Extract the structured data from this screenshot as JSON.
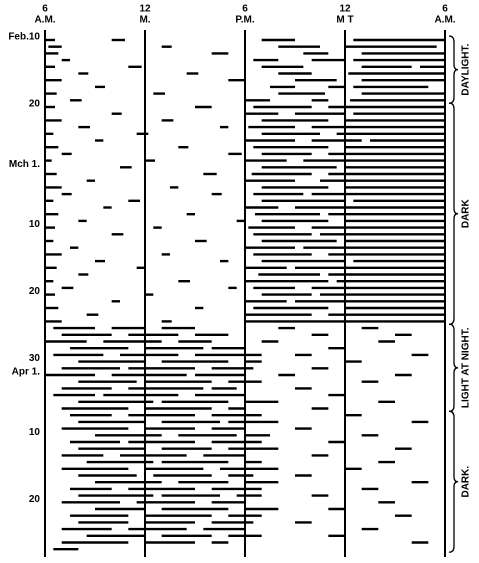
{
  "chart_data": {
    "type": "actogram",
    "xlim": [
      0,
      24
    ],
    "xticks": [
      {
        "value": 0,
        "label": "6"
      },
      {
        "value": 6,
        "label": "12"
      },
      {
        "value": 12,
        "label": "6"
      },
      {
        "value": 18,
        "label": "12"
      },
      {
        "value": 24,
        "label": "6"
      }
    ],
    "xtick_sublabels": [
      "A.M.",
      "M.",
      "P.M.",
      "M T",
      "A.M."
    ],
    "color": "#000000",
    "day_labels": [
      {
        "row": 0,
        "label": "Feb.10"
      },
      {
        "row": 10,
        "label": "20"
      },
      {
        "row": 19,
        "label": "Mch 1."
      },
      {
        "row": 28,
        "label": "10"
      },
      {
        "row": 38,
        "label": "20"
      },
      {
        "row": 48,
        "label": "30"
      },
      {
        "row": 50,
        "label": "Apr 1."
      },
      {
        "row": 59,
        "label": "10"
      },
      {
        "row": 69,
        "label": "20"
      }
    ],
    "phases": [
      {
        "label": "DAYLIGHT.",
        "rows": [
          0,
          9
        ]
      },
      {
        "label": "DARK",
        "rows": [
          10,
          42
        ]
      },
      {
        "label": "LIGHT AT NIGHT.",
        "rows": [
          43,
          55
        ]
      },
      {
        "label": "DARK.",
        "rows": [
          56,
          76
        ]
      }
    ],
    "rows": [
      [
        [
          0,
          0.6
        ],
        [
          4,
          4.8
        ],
        [
          13,
          15
        ],
        [
          18.5,
          24
        ]
      ],
      [
        [
          0.2,
          1
        ],
        [
          7,
          7.6
        ],
        [
          14,
          16.5
        ],
        [
          18,
          23.5
        ]
      ],
      [
        [
          0,
          0.8
        ],
        [
          10,
          11
        ],
        [
          15.5,
          17
        ],
        [
          19,
          24
        ]
      ],
      [
        [
          1,
          1.5
        ],
        [
          12.5,
          14
        ],
        [
          16,
          18
        ],
        [
          18.5,
          24
        ]
      ],
      [
        [
          0,
          0.6
        ],
        [
          5,
          5.8
        ],
        [
          13,
          15.5
        ],
        [
          19,
          22
        ],
        [
          22.5,
          24
        ]
      ],
      [
        [
          2,
          2.6
        ],
        [
          8.5,
          9.2
        ],
        [
          14,
          16
        ],
        [
          18.2,
          24
        ]
      ],
      [
        [
          0,
          1
        ],
        [
          11,
          12
        ],
        [
          15,
          17.5
        ],
        [
          19,
          24
        ]
      ],
      [
        [
          3,
          3.6
        ],
        [
          13.5,
          15
        ],
        [
          17,
          18
        ],
        [
          18.5,
          23
        ]
      ],
      [
        [
          0,
          0.7
        ],
        [
          6.5,
          7.2
        ],
        [
          14,
          16.8
        ],
        [
          19,
          24
        ]
      ],
      [
        [
          1.5,
          2.2
        ],
        [
          12,
          13.5
        ],
        [
          16,
          17
        ],
        [
          18.3,
          24
        ]
      ],
      [
        [
          0,
          0.6
        ],
        [
          9,
          10
        ],
        [
          12.5,
          16
        ],
        [
          17,
          24
        ]
      ],
      [
        [
          4,
          4.6
        ],
        [
          12,
          14
        ],
        [
          15,
          18
        ],
        [
          18.5,
          24
        ]
      ],
      [
        [
          0,
          1
        ],
        [
          7,
          7.7
        ],
        [
          13,
          17
        ],
        [
          18,
          24
        ]
      ],
      [
        [
          2,
          2.7
        ],
        [
          10.5,
          11
        ],
        [
          12.2,
          15
        ],
        [
          16,
          24
        ]
      ],
      [
        [
          0,
          0.5
        ],
        [
          5.5,
          6.2
        ],
        [
          13,
          16.5
        ],
        [
          17.5,
          24
        ]
      ],
      [
        [
          3,
          3.5
        ],
        [
          12,
          15
        ],
        [
          16,
          19
        ],
        [
          19.5,
          24
        ]
      ],
      [
        [
          0,
          0.8
        ],
        [
          8,
          8.6
        ],
        [
          12.5,
          17
        ],
        [
          18,
          24
        ]
      ],
      [
        [
          1,
          1.6
        ],
        [
          11,
          11.8
        ],
        [
          13,
          16
        ],
        [
          17,
          24
        ]
      ],
      [
        [
          0,
          0.4
        ],
        [
          6,
          6.6
        ],
        [
          12,
          14.5
        ],
        [
          15.5,
          24
        ]
      ],
      [
        [
          4.5,
          5.2
        ],
        [
          13,
          17.5
        ],
        [
          18,
          24
        ]
      ],
      [
        [
          0,
          0.7
        ],
        [
          9.5,
          10.3
        ],
        [
          12.4,
          16
        ],
        [
          17,
          24
        ]
      ],
      [
        [
          2.5,
          3
        ],
        [
          12,
          15
        ],
        [
          16.5,
          24
        ]
      ],
      [
        [
          0,
          1
        ],
        [
          7.5,
          8
        ],
        [
          13,
          17
        ],
        [
          18,
          24
        ]
      ],
      [
        [
          1,
          1.6
        ],
        [
          10,
          10.6
        ],
        [
          12.5,
          15.5
        ],
        [
          16,
          24
        ]
      ],
      [
        [
          0,
          0.5
        ],
        [
          5,
          5.7
        ],
        [
          13,
          18
        ],
        [
          18.5,
          24
        ]
      ],
      [
        [
          3.5,
          4
        ],
        [
          12,
          14
        ],
        [
          15,
          24
        ]
      ],
      [
        [
          0,
          0.8
        ],
        [
          8.5,
          9
        ],
        [
          12.6,
          16.5
        ],
        [
          17,
          24
        ]
      ],
      [
        [
          2,
          2.5
        ],
        [
          11.5,
          12
        ],
        [
          13,
          17
        ],
        [
          18,
          24
        ]
      ],
      [
        [
          0,
          0.6
        ],
        [
          6.5,
          7
        ],
        [
          12.2,
          15
        ],
        [
          16,
          24
        ]
      ],
      [
        [
          4,
          4.7
        ],
        [
          12.5,
          16
        ],
        [
          16.5,
          24
        ]
      ],
      [
        [
          0,
          0.5
        ],
        [
          9,
          9.7
        ],
        [
          13,
          17.5
        ],
        [
          18,
          24
        ]
      ],
      [
        [
          1.5,
          2
        ],
        [
          12,
          15
        ],
        [
          15.5,
          24
        ]
      ],
      [
        [
          0,
          1
        ],
        [
          7,
          7.5
        ],
        [
          12.5,
          16
        ],
        [
          17,
          24
        ]
      ],
      [
        [
          3,
          3.6
        ],
        [
          10.5,
          11
        ],
        [
          13,
          18
        ],
        [
          18.5,
          24
        ]
      ],
      [
        [
          0,
          0.7
        ],
        [
          5.5,
          6
        ],
        [
          12,
          14.5
        ],
        [
          15,
          24
        ]
      ],
      [
        [
          2,
          2.6
        ],
        [
          12.8,
          16.5
        ],
        [
          17,
          24
        ]
      ],
      [
        [
          0,
          0.5
        ],
        [
          8,
          8.7
        ],
        [
          12,
          17
        ],
        [
          17.5,
          24
        ]
      ],
      [
        [
          1,
          1.7
        ],
        [
          11,
          11.5
        ],
        [
          12.5,
          15
        ],
        [
          16,
          24
        ]
      ],
      [
        [
          0,
          0.6
        ],
        [
          6,
          6.5
        ],
        [
          13,
          16
        ],
        [
          16.5,
          24
        ]
      ],
      [
        [
          4,
          4.5
        ],
        [
          12,
          14.5
        ],
        [
          15,
          24
        ]
      ],
      [
        [
          0,
          0.8
        ],
        [
          9,
          9.5
        ],
        [
          12.5,
          17
        ],
        [
          18,
          24
        ]
      ],
      [
        [
          2.5,
          3.2
        ],
        [
          12,
          16
        ],
        [
          17,
          24
        ]
      ],
      [
        [
          0,
          1
        ],
        [
          7,
          7.6
        ],
        [
          12,
          24
        ]
      ],
      [
        [
          0.5,
          3
        ],
        [
          4,
          6
        ],
        [
          7,
          9
        ],
        [
          14,
          15
        ],
        [
          19,
          20
        ]
      ],
      [
        [
          1,
          4
        ],
        [
          5,
          8
        ],
        [
          9,
          11
        ],
        [
          16,
          17
        ],
        [
          21,
          22
        ]
      ],
      [
        [
          0,
          2.5
        ],
        [
          3.5,
          7
        ],
        [
          8,
          10
        ],
        [
          13,
          14
        ],
        [
          20,
          21
        ]
      ],
      [
        [
          1.5,
          5
        ],
        [
          6,
          9.5
        ],
        [
          10,
          12
        ],
        [
          17,
          18
        ]
      ],
      [
        [
          0.5,
          3.5
        ],
        [
          4.5,
          8
        ],
        [
          9,
          13
        ],
        [
          15,
          16
        ],
        [
          22,
          23
        ]
      ],
      [
        [
          2,
          6
        ],
        [
          7,
          11
        ],
        [
          12,
          13
        ],
        [
          18,
          19
        ]
      ],
      [
        [
          1,
          4.5
        ],
        [
          5,
          9
        ],
        [
          10,
          12.5
        ],
        [
          16,
          17
        ]
      ],
      [
        [
          0,
          3
        ],
        [
          4,
          8.5
        ],
        [
          9,
          12
        ],
        [
          14,
          15
        ],
        [
          21,
          22
        ]
      ],
      [
        [
          2,
          5.5
        ],
        [
          6,
          10
        ],
        [
          11,
          13
        ],
        [
          19,
          20
        ]
      ],
      [
        [
          1,
          4
        ],
        [
          5,
          9.5
        ],
        [
          10,
          11.5
        ],
        [
          15,
          16
        ]
      ],
      [
        [
          0.5,
          3
        ],
        [
          3.5,
          8
        ],
        [
          9,
          12
        ],
        [
          17,
          18
        ]
      ],
      [
        [
          2,
          6.5
        ],
        [
          7,
          11
        ],
        [
          12,
          14
        ],
        [
          20,
          21
        ]
      ],
      [
        [
          1,
          5
        ],
        [
          6,
          10
        ],
        [
          11,
          12
        ],
        [
          16,
          17
        ]
      ],
      [
        [
          1.5,
          4
        ],
        [
          5,
          9
        ],
        [
          10,
          13
        ],
        [
          18,
          19
        ]
      ],
      [
        [
          2,
          6
        ],
        [
          7,
          10.5
        ],
        [
          11,
          14
        ],
        [
          22,
          23
        ]
      ],
      [
        [
          1,
          5
        ],
        [
          6,
          9
        ],
        [
          10,
          12
        ],
        [
          15,
          16
        ]
      ],
      [
        [
          3,
          7
        ],
        [
          8,
          11.5
        ],
        [
          12,
          13.5
        ],
        [
          19,
          20
        ]
      ],
      [
        [
          1.5,
          4.5
        ],
        [
          5,
          9
        ],
        [
          10,
          13
        ],
        [
          17,
          18
        ]
      ],
      [
        [
          2,
          6
        ],
        [
          7,
          10
        ],
        [
          11,
          14
        ],
        [
          21,
          22
        ]
      ],
      [
        [
          1,
          3.5
        ],
        [
          4.5,
          8.5
        ],
        [
          9.5,
          12
        ],
        [
          16,
          17
        ]
      ],
      [
        [
          2.5,
          6.5
        ],
        [
          7,
          11
        ],
        [
          12,
          13
        ],
        [
          20,
          21
        ]
      ],
      [
        [
          1,
          5
        ],
        [
          6,
          9.5
        ],
        [
          10.5,
          14
        ],
        [
          18,
          19
        ]
      ],
      [
        [
          2,
          5.5
        ],
        [
          6.5,
          10
        ],
        [
          11,
          12.5
        ],
        [
          15,
          16
        ]
      ],
      [
        [
          3,
          7
        ],
        [
          8,
          11
        ],
        [
          12,
          14
        ],
        [
          22,
          23
        ]
      ],
      [
        [
          1.5,
          4
        ],
        [
          5,
          9
        ],
        [
          10,
          13
        ],
        [
          19,
          20
        ]
      ],
      [
        [
          2,
          6.5
        ],
        [
          7,
          10.5
        ],
        [
          11.5,
          13
        ],
        [
          16,
          17
        ]
      ],
      [
        [
          1,
          4.5
        ],
        [
          5.5,
          9
        ],
        [
          10,
          12
        ],
        [
          20,
          21
        ]
      ],
      [
        [
          3,
          6
        ],
        [
          7,
          11
        ],
        [
          12,
          14
        ],
        [
          17,
          18
        ]
      ],
      [
        [
          1.5,
          5
        ],
        [
          6,
          10
        ],
        [
          11,
          13
        ],
        [
          21,
          22
        ]
      ],
      [
        [
          2,
          5
        ],
        [
          6,
          9
        ],
        [
          10,
          12.5
        ],
        [
          15,
          16
        ]
      ],
      [
        [
          1,
          4
        ],
        [
          5,
          8.5
        ],
        [
          9.5,
          12
        ],
        [
          19,
          20
        ]
      ],
      [
        [
          2.5,
          6
        ],
        [
          7,
          10
        ],
        [
          11,
          13
        ],
        [
          17,
          18
        ]
      ],
      [
        [
          1,
          5
        ],
        [
          6,
          9
        ],
        [
          10,
          11
        ],
        [
          22,
          23
        ]
      ],
      [
        [
          0.5,
          2
        ]
      ]
    ]
  }
}
